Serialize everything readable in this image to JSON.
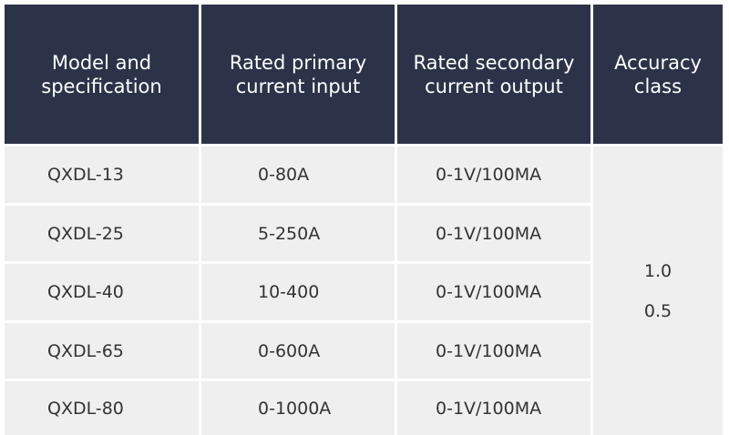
{
  "header": {
    "columns": [
      [
        "Model and",
        "specification"
      ],
      [
        "Rated primary",
        "current input"
      ],
      [
        "Rated secondary",
        "current output"
      ],
      [
        "Accuracy",
        "class"
      ]
    ]
  },
  "table": {
    "rows": [
      [
        "QXDL-13",
        "0-80A",
        "0-1V/100MA"
      ],
      [
        "QXDL-25",
        "5-250A",
        "0-1V/100MA"
      ],
      [
        "QXDL-40",
        "10-400",
        "0-1V/100MA"
      ],
      [
        "QXDL-65",
        "0-600A",
        "0-1V/100MA"
      ],
      [
        "QXDL-80",
        "0-1000A",
        "0-1V/100MA"
      ]
    ],
    "accuracy": [
      "1.0",
      "0.5"
    ]
  }
}
